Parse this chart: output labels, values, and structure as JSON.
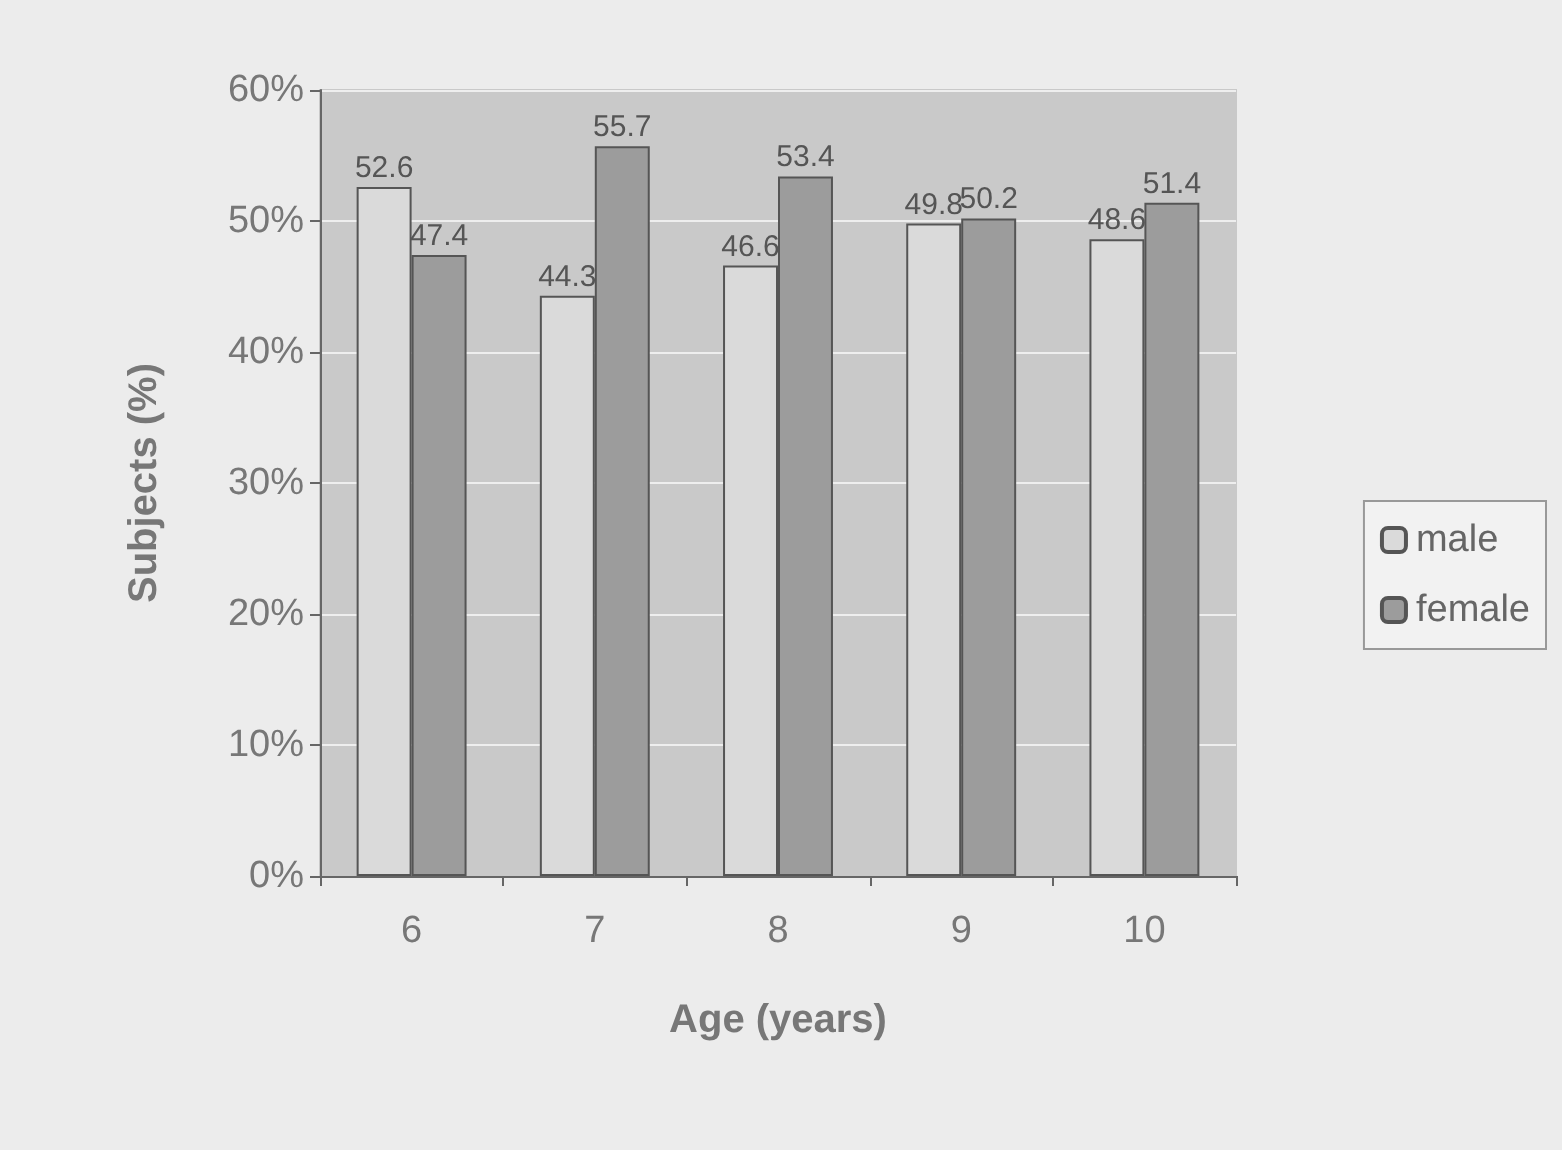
{
  "chart_data": {
    "type": "bar",
    "xlabel": "Age (years)",
    "ylabel": "Subjects (%)",
    "categories": [
      "6",
      "7",
      "8",
      "9",
      "10"
    ],
    "series": [
      {
        "name": "male",
        "color": "#dadada",
        "values": [
          52.6,
          44.3,
          46.6,
          49.8,
          48.6
        ]
      },
      {
        "name": "female",
        "color": "#9c9c9c",
        "values": [
          47.4,
          55.7,
          53.4,
          50.2,
          51.4
        ]
      }
    ],
    "ylim": [
      0,
      60
    ],
    "yticks": [
      {
        "value": 0,
        "label": "0%"
      },
      {
        "value": 10,
        "label": "10%"
      },
      {
        "value": 20,
        "label": "20%"
      },
      {
        "value": 30,
        "label": "30%"
      },
      {
        "value": 40,
        "label": "40%"
      },
      {
        "value": 50,
        "label": "50%"
      },
      {
        "value": 60,
        "label": "60%"
      }
    ],
    "grid": "y",
    "legend": "right",
    "data_labels": true
  }
}
